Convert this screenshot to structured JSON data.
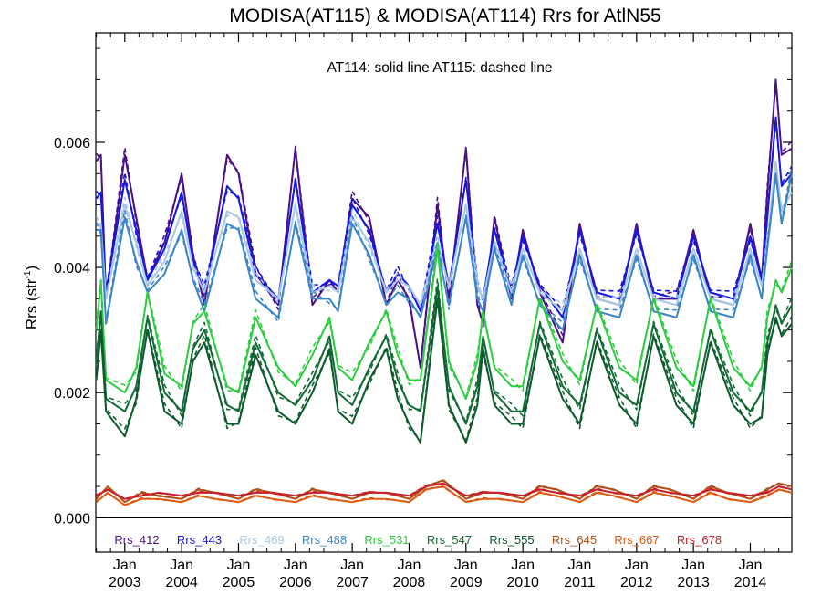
{
  "chart_data": {
    "type": "line",
    "title": "MODISA(AT115) & MODISA(AT114)  Rrs for AtlN55",
    "annotation": "AT114: solid line   AT115: dashed line",
    "ylabel_main": "Rrs (str",
    "ylabel_sup": "-1",
    "ylabel_close": ")",
    "ylim": [
      -0.00055,
      0.00775
    ],
    "xlim": [
      2002.49,
      2014.73
    ],
    "yticks": [
      {
        "value": 0.0,
        "label": "0.000"
      },
      {
        "value": 0.002,
        "label": "0.002"
      },
      {
        "value": 0.004,
        "label": "0.004"
      },
      {
        "value": 0.006,
        "label": "0.006"
      }
    ],
    "xticks": [
      {
        "value": 2003.0,
        "label": "2003"
      },
      {
        "value": 2004.0,
        "label": "2004"
      },
      {
        "value": 2005.0,
        "label": "2005"
      },
      {
        "value": 2006.0,
        "label": "2006"
      },
      {
        "value": 2007.0,
        "label": "2007"
      },
      {
        "value": 2008.0,
        "label": "2008"
      },
      {
        "value": 2009.0,
        "label": "2009"
      },
      {
        "value": 2010.0,
        "label": "2010"
      },
      {
        "value": 2011.0,
        "label": "2011"
      },
      {
        "value": 2012.0,
        "label": "2012"
      },
      {
        "value": 2013.0,
        "label": "2013"
      },
      {
        "value": 2014.0,
        "label": "2014"
      }
    ],
    "xtick_month": "Jan",
    "zero_line": true,
    "legend_position": "bottom",
    "dashed_offset": 0.00012,
    "series": [
      {
        "name": "Rrs_412",
        "color": "#4b0f86",
        "x": [
          2002.5,
          2002.58,
          2002.67,
          2003.0,
          2003.2,
          2003.4,
          2003.7,
          2004.0,
          2004.2,
          2004.4,
          2004.8,
          2005.0,
          2005.3,
          2005.7,
          2006.0,
          2006.3,
          2006.6,
          2006.75,
          2007.0,
          2007.3,
          2007.6,
          2007.8,
          2008.0,
          2008.2,
          2008.5,
          2008.7,
          2009.0,
          2009.2,
          2009.3,
          2009.5,
          2009.8,
          2010.0,
          2010.3,
          2010.7,
          2011.0,
          2011.3,
          2011.7,
          2012.0,
          2012.3,
          2012.7,
          2013.0,
          2013.3,
          2013.7,
          2014.0,
          2014.2,
          2014.3,
          2014.45,
          2014.55,
          2014.73
        ],
        "values": [
          0.0057,
          0.0058,
          0.0035,
          0.0058,
          0.0048,
          0.0038,
          0.0044,
          0.0055,
          0.0042,
          0.0034,
          0.0058,
          0.0055,
          0.0039,
          0.0034,
          0.0059,
          0.0034,
          0.0038,
          0.0036,
          0.0051,
          0.0048,
          0.0034,
          0.0038,
          0.0035,
          0.0024,
          0.005,
          0.0035,
          0.0059,
          0.0034,
          0.0031,
          0.0048,
          0.0035,
          0.0046,
          0.0036,
          0.0028,
          0.0047,
          0.0035,
          0.0034,
          0.0047,
          0.0035,
          0.0035,
          0.0046,
          0.0035,
          0.0034,
          0.0047,
          0.0038,
          0.0052,
          0.007,
          0.0058,
          0.0059
        ]
      },
      {
        "name": "Rrs_443",
        "color": "#1717e0",
        "x": [
          2002.5,
          2002.58,
          2002.67,
          2003.0,
          2003.2,
          2003.4,
          2003.7,
          2004.0,
          2004.2,
          2004.4,
          2004.8,
          2005.0,
          2005.3,
          2005.7,
          2006.0,
          2006.3,
          2006.6,
          2006.75,
          2007.0,
          2007.3,
          2007.6,
          2007.8,
          2008.0,
          2008.2,
          2008.5,
          2008.7,
          2009.0,
          2009.2,
          2009.3,
          2009.5,
          2009.8,
          2010.0,
          2010.3,
          2010.7,
          2011.0,
          2011.3,
          2011.7,
          2012.0,
          2012.3,
          2012.7,
          2013.0,
          2013.3,
          2013.7,
          2014.0,
          2014.2,
          2014.3,
          2014.45,
          2014.55,
          2014.73
        ],
        "values": [
          0.0051,
          0.0052,
          0.0036,
          0.0054,
          0.0046,
          0.0038,
          0.0043,
          0.0052,
          0.0041,
          0.0036,
          0.0053,
          0.0051,
          0.0039,
          0.0035,
          0.0054,
          0.0036,
          0.0038,
          0.0037,
          0.005,
          0.0046,
          0.0036,
          0.0039,
          0.0037,
          0.0033,
          0.0047,
          0.0037,
          0.0054,
          0.0037,
          0.0035,
          0.0046,
          0.0036,
          0.0045,
          0.0037,
          0.0032,
          0.0046,
          0.0036,
          0.0035,
          0.0046,
          0.0036,
          0.0035,
          0.0045,
          0.0036,
          0.0035,
          0.0045,
          0.0038,
          0.0048,
          0.0064,
          0.0053,
          0.0055
        ]
      },
      {
        "name": "Rrs_469",
        "color": "#a8c8e6",
        "x": [
          2002.5,
          2002.58,
          2002.67,
          2003.0,
          2003.2,
          2003.4,
          2003.7,
          2004.0,
          2004.2,
          2004.4,
          2004.8,
          2005.0,
          2005.3,
          2005.7,
          2006.0,
          2006.3,
          2006.6,
          2006.75,
          2007.0,
          2007.3,
          2007.6,
          2007.8,
          2008.0,
          2008.2,
          2008.5,
          2008.7,
          2009.0,
          2009.2,
          2009.3,
          2009.5,
          2009.8,
          2010.0,
          2010.3,
          2010.7,
          2011.0,
          2011.3,
          2011.7,
          2012.0,
          2012.3,
          2012.7,
          2013.0,
          2013.3,
          2013.7,
          2014.0,
          2014.2,
          2014.3,
          2014.45,
          2014.55,
          2014.73
        ],
        "values": [
          0.0047,
          0.0047,
          0.0035,
          0.005,
          0.0044,
          0.0037,
          0.0041,
          0.0049,
          0.004,
          0.0036,
          0.0049,
          0.0048,
          0.0038,
          0.0035,
          0.005,
          0.0036,
          0.0037,
          0.0036,
          0.0048,
          0.0044,
          0.0036,
          0.0038,
          0.0037,
          0.0034,
          0.0044,
          0.0037,
          0.005,
          0.0037,
          0.0035,
          0.0044,
          0.0036,
          0.0043,
          0.0036,
          0.0033,
          0.0043,
          0.0035,
          0.0034,
          0.0043,
          0.0035,
          0.0034,
          0.0043,
          0.0035,
          0.0034,
          0.0043,
          0.0037,
          0.0044,
          0.0057,
          0.0049,
          0.0052
        ]
      },
      {
        "name": "Rrs_488",
        "color": "#3a86c8",
        "x": [
          2002.5,
          2002.58,
          2002.67,
          2003.0,
          2003.2,
          2003.4,
          2003.7,
          2004.0,
          2004.2,
          2004.4,
          2004.8,
          2005.0,
          2005.3,
          2005.7,
          2006.0,
          2006.3,
          2006.6,
          2006.75,
          2007.0,
          2007.3,
          2007.6,
          2007.8,
          2008.0,
          2008.2,
          2008.5,
          2008.7,
          2009.0,
          2009.2,
          2009.3,
          2009.5,
          2009.8,
          2010.0,
          2010.3,
          2010.7,
          2011.0,
          2011.3,
          2011.7,
          2012.0,
          2012.3,
          2012.7,
          2013.0,
          2013.3,
          2013.7,
          2014.0,
          2014.2,
          2014.3,
          2014.45,
          2014.55,
          2014.73
        ],
        "values": [
          0.0046,
          0.0046,
          0.0031,
          0.0048,
          0.0041,
          0.0036,
          0.0039,
          0.0046,
          0.0038,
          0.0033,
          0.0047,
          0.0046,
          0.0035,
          0.0032,
          0.0047,
          0.0035,
          0.0035,
          0.0033,
          0.0047,
          0.0042,
          0.0034,
          0.0036,
          0.0035,
          0.0032,
          0.0043,
          0.0034,
          0.0048,
          0.0035,
          0.0033,
          0.0043,
          0.0034,
          0.0042,
          0.0034,
          0.003,
          0.0042,
          0.0033,
          0.0032,
          0.0042,
          0.0033,
          0.0032,
          0.0042,
          0.0033,
          0.0032,
          0.0042,
          0.0035,
          0.0043,
          0.0055,
          0.0047,
          0.0055
        ]
      },
      {
        "name": "Rrs_531",
        "color": "#2ecc40",
        "x": [
          2002.5,
          2002.58,
          2002.67,
          2003.0,
          2003.2,
          2003.4,
          2003.7,
          2004.0,
          2004.2,
          2004.4,
          2004.8,
          2005.0,
          2005.3,
          2005.7,
          2006.0,
          2006.3,
          2006.6,
          2006.75,
          2007.0,
          2007.3,
          2007.6,
          2007.8,
          2008.0,
          2008.2,
          2008.5,
          2008.7,
          2009.0,
          2009.2,
          2009.3,
          2009.5,
          2009.8,
          2010.0,
          2010.3,
          2010.7,
          2011.0,
          2011.3,
          2011.7,
          2012.0,
          2012.3,
          2012.7,
          2013.0,
          2013.3,
          2013.7,
          2014.0,
          2014.2,
          2014.3,
          2014.45,
          2014.55,
          2014.73
        ],
        "values": [
          0.003,
          0.0038,
          0.0022,
          0.002,
          0.0024,
          0.0036,
          0.0023,
          0.0021,
          0.0031,
          0.0033,
          0.0021,
          0.002,
          0.0032,
          0.0024,
          0.0021,
          0.0026,
          0.0032,
          0.0024,
          0.0022,
          0.0028,
          0.0033,
          0.0026,
          0.0022,
          0.0022,
          0.0043,
          0.0025,
          0.0019,
          0.0025,
          0.0033,
          0.0024,
          0.0021,
          0.0021,
          0.0035,
          0.0025,
          0.0022,
          0.0034,
          0.0024,
          0.0022,
          0.0035,
          0.0024,
          0.0021,
          0.0035,
          0.0024,
          0.0021,
          0.0024,
          0.0032,
          0.0038,
          0.0036,
          0.004
        ]
      },
      {
        "name": "Rrs_547",
        "color": "#126b35",
        "x": [
          2002.5,
          2002.58,
          2002.67,
          2003.0,
          2003.2,
          2003.4,
          2003.7,
          2004.0,
          2004.2,
          2004.4,
          2004.8,
          2005.0,
          2005.3,
          2005.7,
          2006.0,
          2006.3,
          2006.6,
          2006.75,
          2007.0,
          2007.3,
          2007.6,
          2007.8,
          2008.0,
          2008.2,
          2008.5,
          2008.7,
          2009.0,
          2009.2,
          2009.3,
          2009.5,
          2009.8,
          2010.0,
          2010.3,
          2010.7,
          2011.0,
          2011.3,
          2011.7,
          2012.0,
          2012.3,
          2012.7,
          2013.0,
          2013.3,
          2013.7,
          2014.0,
          2014.2,
          2014.3,
          2014.45,
          2014.55,
          2014.73
        ],
        "values": [
          0.0025,
          0.0033,
          0.0019,
          0.0017,
          0.0021,
          0.0032,
          0.002,
          0.0017,
          0.0027,
          0.003,
          0.0018,
          0.0017,
          0.0028,
          0.002,
          0.0018,
          0.0022,
          0.0029,
          0.002,
          0.0018,
          0.0024,
          0.0029,
          0.0022,
          0.0018,
          0.0017,
          0.0037,
          0.0021,
          0.0015,
          0.0021,
          0.0029,
          0.002,
          0.0017,
          0.0017,
          0.0031,
          0.0021,
          0.0018,
          0.003,
          0.002,
          0.0018,
          0.0031,
          0.002,
          0.0017,
          0.003,
          0.002,
          0.0017,
          0.002,
          0.0028,
          0.0034,
          0.0031,
          0.0034
        ]
      },
      {
        "name": "Rrs_555",
        "color": "#0b5a2c",
        "x": [
          2002.5,
          2002.58,
          2002.67,
          2003.0,
          2003.2,
          2003.4,
          2003.7,
          2004.0,
          2004.2,
          2004.4,
          2004.8,
          2005.0,
          2005.3,
          2005.7,
          2006.0,
          2006.3,
          2006.6,
          2006.75,
          2007.0,
          2007.3,
          2007.6,
          2007.8,
          2008.0,
          2008.2,
          2008.5,
          2008.7,
          2009.0,
          2009.2,
          2009.3,
          2009.5,
          2009.8,
          2010.0,
          2010.3,
          2010.7,
          2011.0,
          2011.3,
          2011.7,
          2012.0,
          2012.3,
          2012.7,
          2013.0,
          2013.3,
          2013.7,
          2014.0,
          2014.2,
          2014.3,
          2014.45,
          2014.55,
          2014.73
        ],
        "values": [
          0.0022,
          0.003,
          0.0017,
          0.0013,
          0.0019,
          0.003,
          0.0017,
          0.0015,
          0.0025,
          0.0028,
          0.0015,
          0.0015,
          0.0026,
          0.0017,
          0.0015,
          0.002,
          0.0027,
          0.0017,
          0.0015,
          0.0022,
          0.0027,
          0.0019,
          0.0015,
          0.0012,
          0.0035,
          0.0018,
          0.0012,
          0.0018,
          0.0027,
          0.0018,
          0.0015,
          0.0015,
          0.0029,
          0.0019,
          0.0015,
          0.0028,
          0.0018,
          0.0015,
          0.0029,
          0.0018,
          0.0015,
          0.0028,
          0.0018,
          0.0015,
          0.0016,
          0.0026,
          0.0032,
          0.0029,
          0.0031
        ]
      },
      {
        "name": "Rrs_645",
        "color": "#b0501a",
        "x": [
          2002.5,
          2002.7,
          2003.0,
          2003.3,
          2003.6,
          2004.0,
          2004.3,
          2004.6,
          2005.0,
          2005.3,
          2005.6,
          2006.0,
          2006.3,
          2006.6,
          2007.0,
          2007.3,
          2007.6,
          2008.0,
          2008.3,
          2008.6,
          2009.0,
          2009.3,
          2009.6,
          2010.0,
          2010.3,
          2010.6,
          2011.0,
          2011.3,
          2011.6,
          2012.0,
          2012.3,
          2012.6,
          2013.0,
          2013.3,
          2013.6,
          2014.0,
          2014.3,
          2014.5,
          2014.73
        ],
        "values": [
          0.0003,
          0.0005,
          0.00025,
          0.0004,
          0.00035,
          0.0003,
          0.00045,
          0.0004,
          0.0003,
          0.00045,
          0.0004,
          0.0003,
          0.00045,
          0.0004,
          0.0003,
          0.0004,
          0.0004,
          0.0003,
          0.0005,
          0.0006,
          0.0003,
          0.0004,
          0.0004,
          0.0003,
          0.0005,
          0.00045,
          0.0003,
          0.0005,
          0.00045,
          0.0003,
          0.0005,
          0.00045,
          0.0003,
          0.0005,
          0.0004,
          0.0003,
          0.00045,
          0.00055,
          0.0005
        ]
      },
      {
        "name": "Rrs_667",
        "color": "#e05a10",
        "x": [
          2002.5,
          2002.7,
          2003.0,
          2003.3,
          2003.6,
          2004.0,
          2004.3,
          2004.6,
          2005.0,
          2005.3,
          2005.6,
          2006.0,
          2006.3,
          2006.6,
          2007.0,
          2007.3,
          2007.6,
          2008.0,
          2008.3,
          2008.6,
          2009.0,
          2009.3,
          2009.6,
          2010.0,
          2010.3,
          2010.6,
          2011.0,
          2011.3,
          2011.6,
          2012.0,
          2012.3,
          2012.6,
          2013.0,
          2013.3,
          2013.6,
          2014.0,
          2014.3,
          2014.5,
          2014.73
        ],
        "values": [
          0.00025,
          0.0004,
          0.0002,
          0.0003,
          0.0003,
          0.00025,
          0.00035,
          0.0003,
          0.00025,
          0.00035,
          0.0003,
          0.00025,
          0.00035,
          0.0003,
          0.00025,
          0.0003,
          0.0003,
          0.00025,
          0.00045,
          0.0005,
          0.00025,
          0.0003,
          0.0003,
          0.00025,
          0.0004,
          0.00035,
          0.00025,
          0.0004,
          0.00035,
          0.00025,
          0.0004,
          0.00035,
          0.00025,
          0.0004,
          0.0003,
          0.00025,
          0.00035,
          0.00045,
          0.0004
        ]
      },
      {
        "name": "Rrs_678",
        "color": "#c8202a",
        "x": [
          2002.5,
          2002.7,
          2003.0,
          2003.3,
          2003.6,
          2004.0,
          2004.3,
          2004.6,
          2005.0,
          2005.3,
          2005.6,
          2006.0,
          2006.3,
          2006.6,
          2007.0,
          2007.3,
          2007.6,
          2008.0,
          2008.3,
          2008.6,
          2009.0,
          2009.3,
          2009.6,
          2010.0,
          2010.3,
          2010.6,
          2011.0,
          2011.3,
          2011.6,
          2012.0,
          2012.3,
          2012.6,
          2013.0,
          2013.3,
          2013.6,
          2014.0,
          2014.3,
          2014.5,
          2014.73
        ],
        "values": [
          0.00035,
          0.00045,
          0.0003,
          0.00035,
          0.0004,
          0.00035,
          0.0004,
          0.0004,
          0.00035,
          0.0004,
          0.0004,
          0.00035,
          0.0004,
          0.0004,
          0.00035,
          0.0004,
          0.0004,
          0.00035,
          0.0005,
          0.00055,
          0.00035,
          0.0004,
          0.0004,
          0.00035,
          0.00045,
          0.0004,
          0.00035,
          0.00045,
          0.0004,
          0.00035,
          0.00045,
          0.0004,
          0.00035,
          0.00045,
          0.0004,
          0.00035,
          0.0004,
          0.0005,
          0.00045
        ]
      }
    ]
  }
}
